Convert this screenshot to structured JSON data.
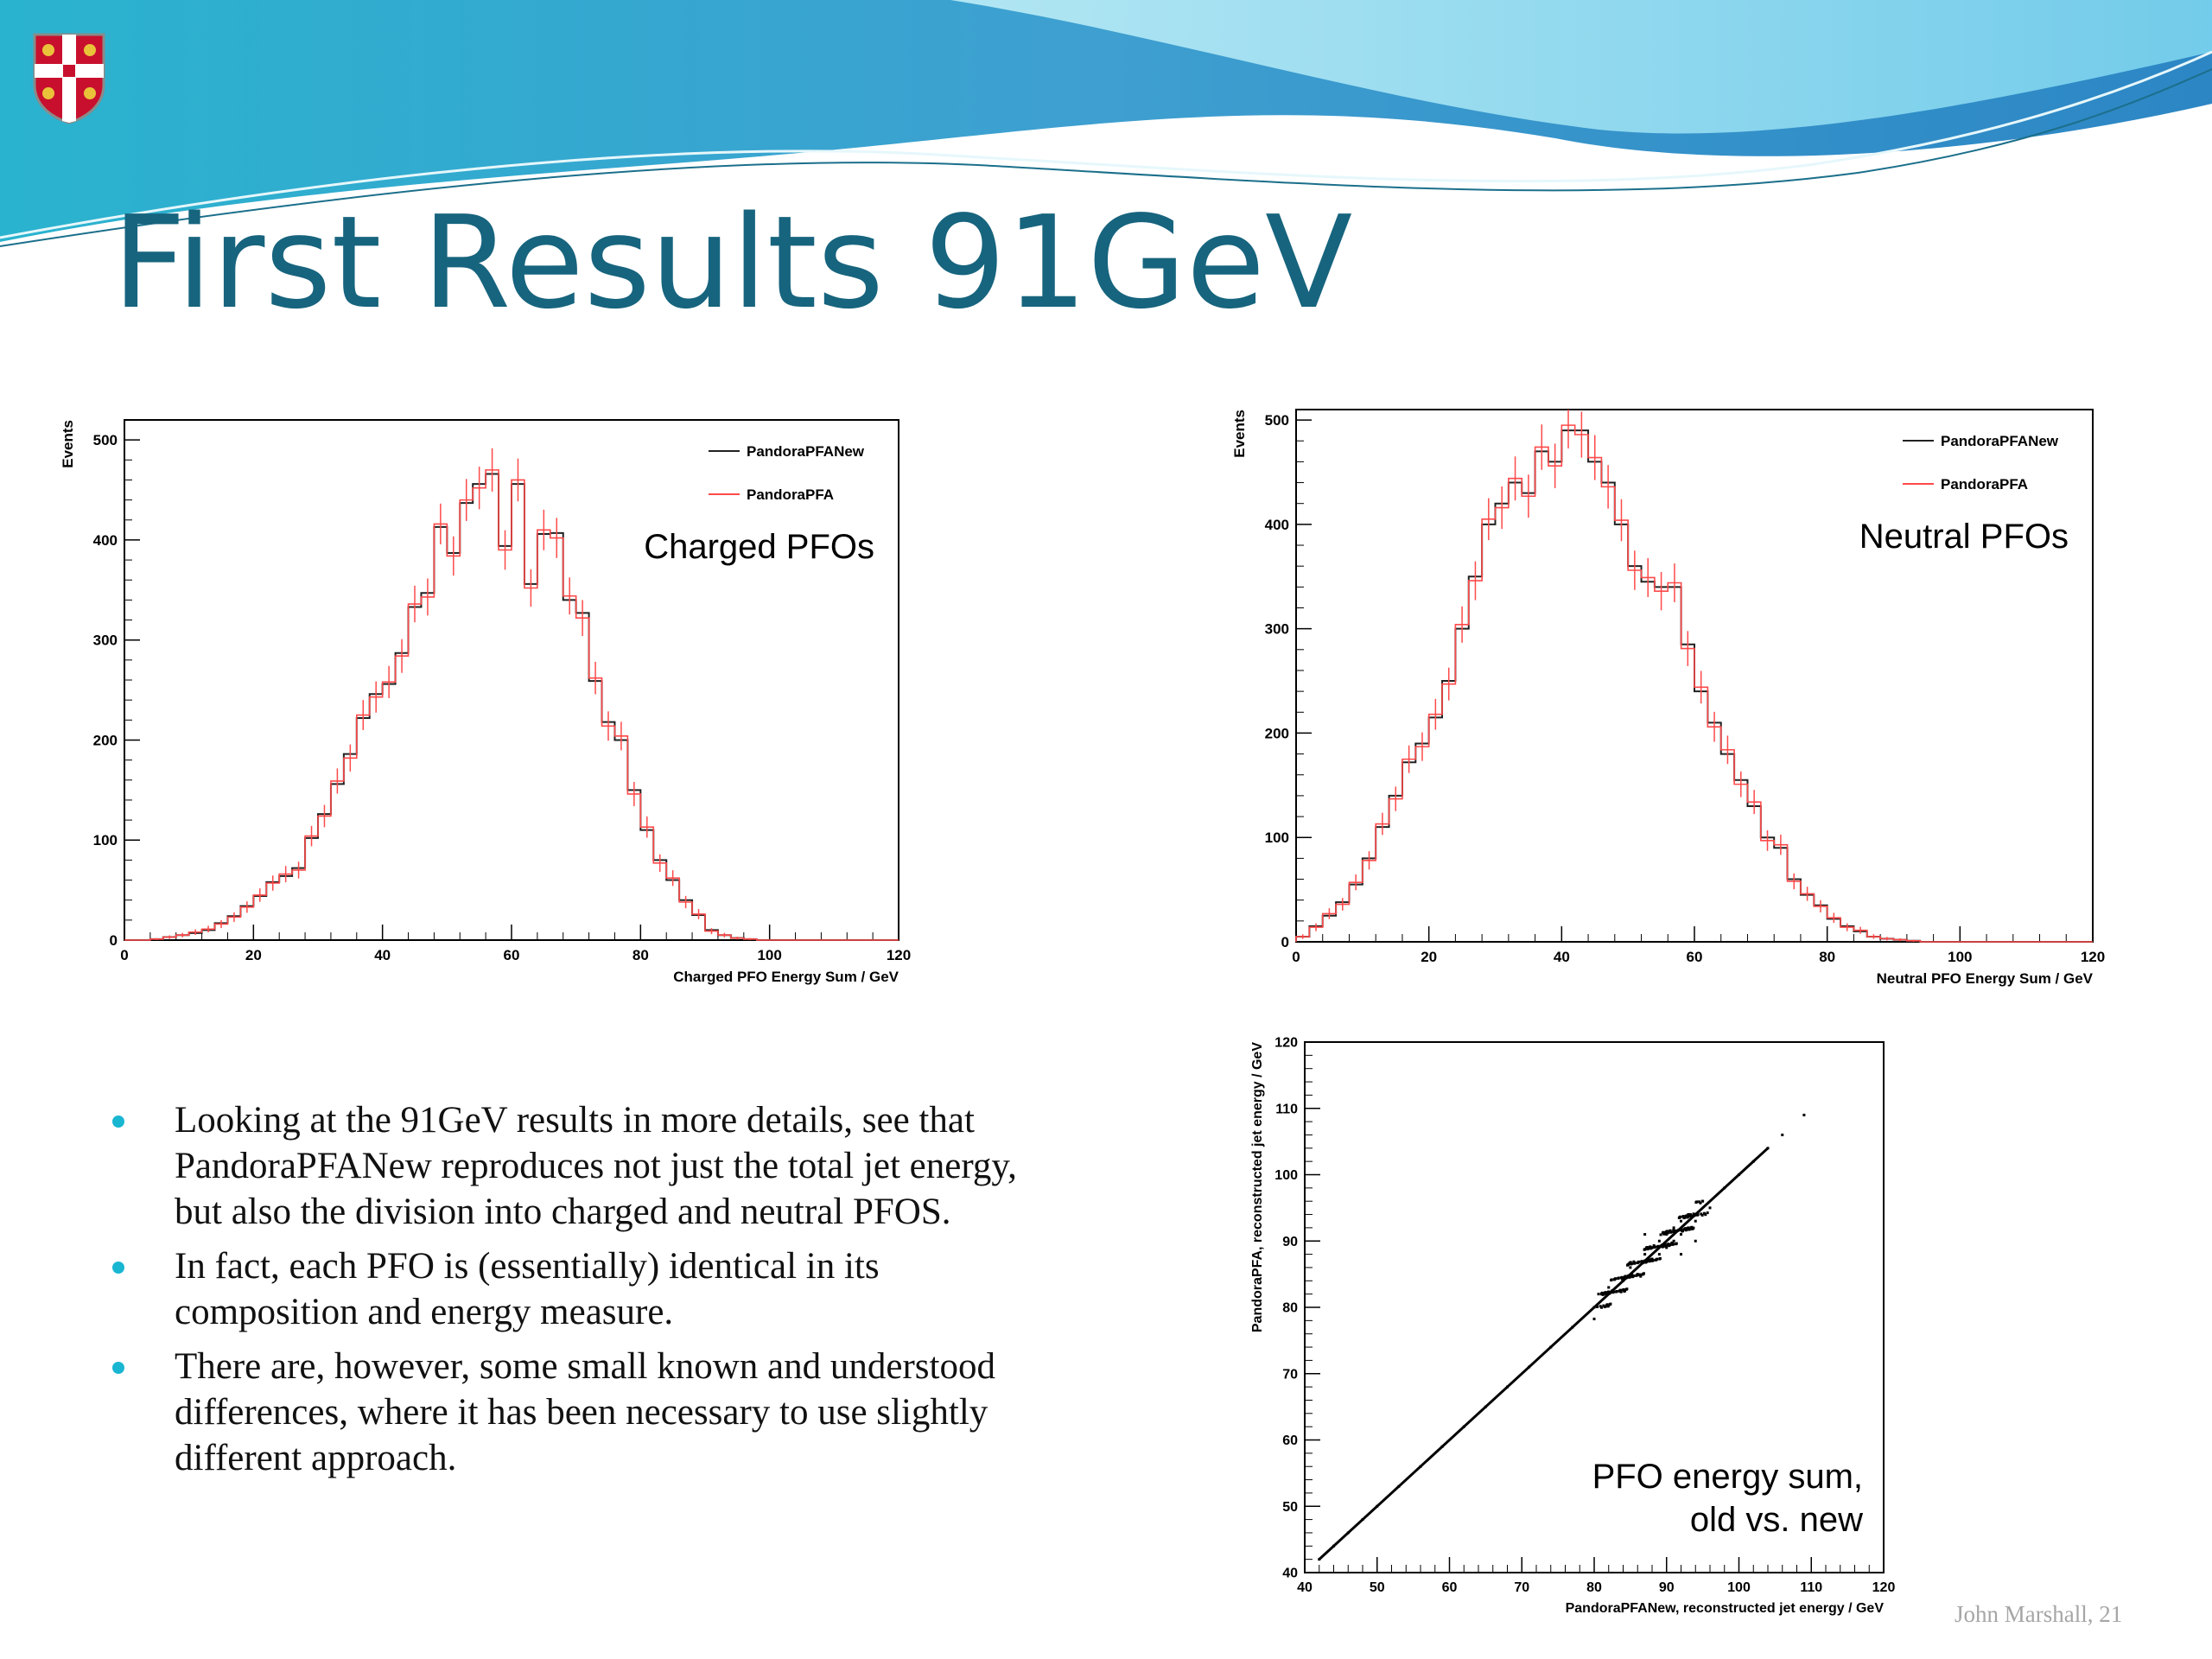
{
  "slide": {
    "title": "First Results 91GeV",
    "footer": "John Marshall, 21",
    "bullets": [
      "Looking at the 91GeV results in more details, see that PandoraPFANew reproduces not just the total jet energy, but also the division into charged and neutral PFOS.",
      "In fact, each PFO is (essentially) identical in its composition and energy measure.",
      "There are, however, some small known and understood differences, where it has been necessary to use slightly different approach."
    ]
  },
  "colors": {
    "title": "#17647e",
    "bullet": "#19b6d2",
    "new_series": "#222222",
    "old_series": "#ff4a4a"
  },
  "chart_data": [
    {
      "type": "line",
      "style": "step histogram with error bars",
      "annotation": "Charged PFOs",
      "xlabel": "Charged PFO Energy Sum / GeV",
      "ylabel": "Events",
      "xlim": [
        0,
        120
      ],
      "ylim": [
        0,
        520
      ],
      "xticks": [
        0,
        20,
        40,
        60,
        80,
        100,
        120
      ],
      "yticks": [
        0,
        100,
        200,
        300,
        400,
        500
      ],
      "legend_position": "top-right",
      "bin_width": 2,
      "x": [
        1,
        3,
        5,
        7,
        9,
        11,
        13,
        15,
        17,
        19,
        21,
        23,
        25,
        27,
        29,
        31,
        33,
        35,
        37,
        39,
        41,
        43,
        45,
        47,
        49,
        51,
        53,
        55,
        57,
        59,
        61,
        63,
        65,
        67,
        69,
        71,
        73,
        75,
        77,
        79,
        81,
        83,
        85,
        87,
        89,
        91,
        93,
        95,
        97,
        99,
        101,
        103,
        105,
        107,
        109,
        111,
        113,
        115,
        117,
        119
      ],
      "series": [
        {
          "name": "PandoraPFANew",
          "values": [
            0,
            0,
            1,
            3,
            5,
            7,
            10,
            17,
            24,
            34,
            44,
            58,
            64,
            72,
            102,
            126,
            156,
            186,
            222,
            246,
            256,
            287,
            333,
            347,
            413,
            387,
            437,
            456,
            466,
            394,
            456,
            356,
            406,
            407,
            340,
            327,
            259,
            218,
            200,
            150,
            110,
            80,
            60,
            40,
            25,
            10,
            5,
            2,
            1,
            0,
            0,
            0,
            0,
            0,
            0,
            0,
            0,
            0,
            0,
            0
          ]
        },
        {
          "name": "PandoraPFA",
          "values": [
            0,
            0,
            1,
            3,
            5,
            8,
            11,
            16,
            23,
            33,
            45,
            57,
            66,
            70,
            104,
            124,
            159,
            182,
            225,
            243,
            258,
            284,
            336,
            343,
            416,
            384,
            440,
            452,
            470,
            390,
            460,
            352,
            410,
            402,
            344,
            322,
            262,
            214,
            204,
            146,
            113,
            77,
            62,
            38,
            26,
            9,
            5,
            2,
            1,
            0,
            0,
            0,
            0,
            0,
            0,
            0,
            0,
            0,
            0,
            0
          ]
        }
      ]
    },
    {
      "type": "line",
      "style": "step histogram with error bars",
      "annotation": "Neutral PFOs",
      "xlabel": "Neutral PFO Energy Sum / GeV",
      "ylabel": "Events",
      "xlim": [
        0,
        120
      ],
      "ylim": [
        0,
        510
      ],
      "xticks": [
        0,
        20,
        40,
        60,
        80,
        100,
        120
      ],
      "yticks": [
        0,
        100,
        200,
        300,
        400,
        500
      ],
      "legend_position": "top-right",
      "bin_width": 2,
      "x": [
        1,
        3,
        5,
        7,
        9,
        11,
        13,
        15,
        17,
        19,
        21,
        23,
        25,
        27,
        29,
        31,
        33,
        35,
        37,
        39,
        41,
        43,
        45,
        47,
        49,
        51,
        53,
        55,
        57,
        59,
        61,
        63,
        65,
        67,
        69,
        71,
        73,
        75,
        77,
        79,
        81,
        83,
        85,
        87,
        89,
        91,
        93,
        95,
        97,
        99,
        101,
        103,
        105,
        107,
        109,
        111,
        113,
        115,
        117,
        119
      ],
      "series": [
        {
          "name": "PandoraPFANew",
          "values": [
            5,
            15,
            25,
            38,
            55,
            80,
            110,
            140,
            172,
            190,
            215,
            250,
            300,
            350,
            400,
            420,
            440,
            430,
            470,
            460,
            490,
            490,
            460,
            440,
            400,
            360,
            345,
            340,
            340,
            285,
            240,
            210,
            180,
            155,
            130,
            100,
            90,
            60,
            45,
            35,
            22,
            15,
            10,
            5,
            3,
            2,
            1,
            0,
            0,
            0,
            0,
            0,
            0,
            0,
            0,
            0,
            0,
            0,
            0,
            0
          ]
        },
        {
          "name": "PandoraPFA",
          "values": [
            5,
            14,
            27,
            36,
            57,
            78,
            113,
            137,
            175,
            187,
            218,
            247,
            304,
            346,
            405,
            416,
            444,
            427,
            474,
            456,
            495,
            486,
            464,
            436,
            404,
            356,
            349,
            336,
            344,
            281,
            244,
            206,
            184,
            151,
            134,
            97,
            93,
            58,
            46,
            34,
            23,
            14,
            11,
            5,
            3,
            2,
            1,
            0,
            0,
            0,
            0,
            0,
            0,
            0,
            0,
            0,
            0,
            0,
            0,
            0
          ]
        }
      ]
    },
    {
      "type": "scatter",
      "annotation": [
        "PFO energy sum,",
        "old vs. new"
      ],
      "xlabel": "PandoraPFANew, reconstructed jet energy / GeV",
      "ylabel": "PandoraPFA, reconstructed jet energy / GeV",
      "xlim": [
        40,
        120
      ],
      "ylim": [
        40,
        120
      ],
      "xticks": [
        40,
        50,
        60,
        70,
        80,
        90,
        100,
        110,
        120
      ],
      "yticks": [
        40,
        50,
        60,
        70,
        80,
        90,
        100,
        110,
        120
      ],
      "trend": "points lie on y = x, densest near 88-92 GeV",
      "points": [
        [
          42,
          42
        ],
        [
          44,
          44
        ],
        [
          46,
          46
        ],
        [
          48,
          48
        ],
        [
          50,
          50
        ],
        [
          53,
          53
        ],
        [
          56,
          56
        ],
        [
          59,
          59
        ],
        [
          62,
          62
        ],
        [
          65,
          65
        ],
        [
          68,
          68
        ],
        [
          71,
          71
        ],
        [
          74,
          74
        ],
        [
          77,
          77
        ],
        [
          80,
          80
        ],
        [
          82,
          83
        ],
        [
          84,
          84
        ],
        [
          85,
          86
        ],
        [
          86,
          85
        ],
        [
          87,
          88
        ],
        [
          88,
          87
        ],
        [
          88,
          89
        ],
        [
          89,
          88
        ],
        [
          89,
          90
        ],
        [
          90,
          89
        ],
        [
          90,
          91
        ],
        [
          91,
          90
        ],
        [
          91,
          92
        ],
        [
          92,
          91
        ],
        [
          92,
          93
        ],
        [
          93,
          92
        ],
        [
          93,
          94
        ],
        [
          94,
          93
        ],
        [
          95,
          96
        ],
        [
          96,
          95
        ],
        [
          98,
          98
        ],
        [
          100,
          100
        ],
        [
          102,
          102
        ],
        [
          104,
          104
        ],
        [
          106,
          106
        ],
        [
          109,
          109
        ],
        [
          81,
          82
        ],
        [
          92,
          88
        ],
        [
          87,
          91
        ],
        [
          94,
          90
        ]
      ]
    }
  ]
}
